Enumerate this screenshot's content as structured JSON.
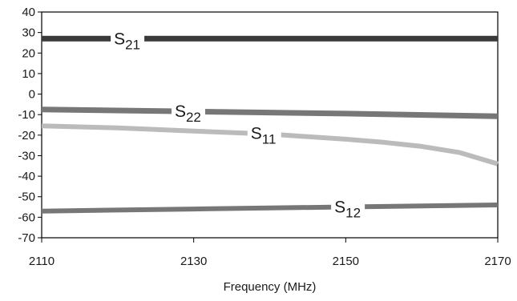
{
  "chart_data": {
    "type": "line",
    "xlabel": "Frequency (MHz)",
    "ylabel": "",
    "xlim": [
      2110,
      2170
    ],
    "ylim": [
      -70,
      40
    ],
    "x_ticks": [
      "2110",
      "2130",
      "2150",
      "2170"
    ],
    "y_ticks": [
      "40",
      "30",
      "20",
      "10",
      "0",
      "-10",
      "-20",
      "-30",
      "-40",
      "-50",
      "-60",
      "-70"
    ],
    "grid": false,
    "series": [
      {
        "name": "S21",
        "label_main": "S",
        "label_sub": "21",
        "color": "#3a3a3a",
        "x": [
          2110,
          2130,
          2150,
          2170
        ],
        "y": [
          27,
          27,
          27,
          27
        ]
      },
      {
        "name": "S22",
        "label_main": "S",
        "label_sub": "22",
        "color": "#777777",
        "x": [
          2110,
          2130,
          2150,
          2170
        ],
        "y": [
          -7.5,
          -8.5,
          -9.5,
          -10.8
        ]
      },
      {
        "name": "S11",
        "label_main": "S",
        "label_sub": "11",
        "color": "#bbbbbb",
        "x": [
          2110,
          2120,
          2130,
          2140,
          2150,
          2155,
          2160,
          2165,
          2170
        ],
        "y": [
          -15.5,
          -16.5,
          -18,
          -19.5,
          -22,
          -23.5,
          -25.5,
          -28.5,
          -34
        ]
      },
      {
        "name": "S12",
        "label_main": "S",
        "label_sub": "12",
        "color": "#777777",
        "x": [
          2110,
          2130,
          2150,
          2170
        ],
        "y": [
          -57,
          -56,
          -55,
          -54
        ]
      }
    ]
  }
}
